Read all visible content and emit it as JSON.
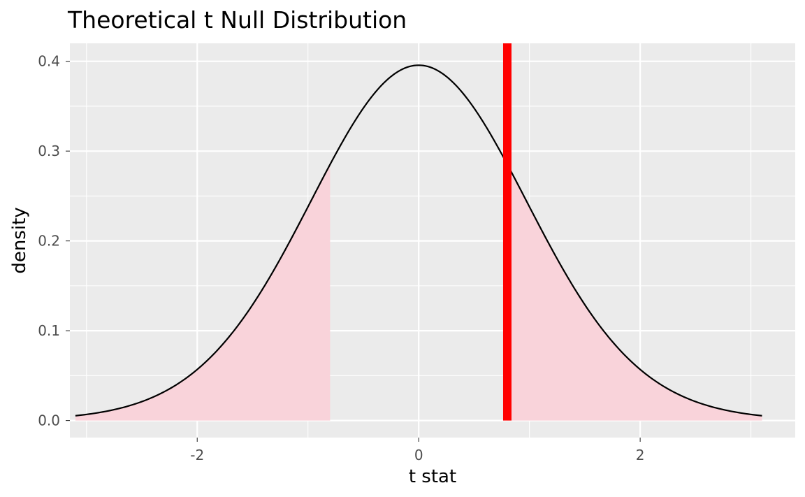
{
  "chart_data": {
    "type": "area",
    "title": "Theoretical t Null Distribution",
    "xlabel": "t stat",
    "ylabel": "density",
    "xlim": [
      -3.15,
      3.4
    ],
    "ylim": [
      -0.019,
      0.42
    ],
    "x_ticks": [
      {
        "value": -2,
        "label": "-2"
      },
      {
        "value": 0,
        "label": "0"
      },
      {
        "value": 2,
        "label": "2"
      }
    ],
    "y_ticks": [
      {
        "value": 0,
        "label": "0.0"
      },
      {
        "value": 0.1,
        "label": "0.1"
      },
      {
        "value": 0.2,
        "label": "0.2"
      },
      {
        "value": 0.3,
        "label": "0.3"
      },
      {
        "value": 0.4,
        "label": "0.4"
      }
    ],
    "x_minor_gridlines": [
      -3,
      -1,
      1,
      3
    ],
    "y_minor_gridlines": [
      0.05,
      0.15,
      0.25,
      0.35
    ],
    "grid": true,
    "density_curve": {
      "x": [
        -3.1,
        -3.0,
        -2.8,
        -2.6,
        -2.4,
        -2.2,
        -2.0,
        -1.8,
        -1.6,
        -1.4,
        -1.2,
        -1.0,
        -0.8,
        -0.6,
        -0.4,
        -0.2,
        0.0,
        0.2,
        0.4,
        0.6,
        0.8,
        1.0,
        1.2,
        1.4,
        1.6,
        1.8,
        2.0,
        2.2,
        2.4,
        2.6,
        2.8,
        3.0,
        3.1
      ],
      "y": [
        0.0033,
        0.0044,
        0.0079,
        0.0136,
        0.0224,
        0.0355,
        0.054,
        0.079,
        0.1109,
        0.1497,
        0.1942,
        0.242,
        0.2897,
        0.3332,
        0.3683,
        0.391,
        0.3989,
        0.391,
        0.3683,
        0.3332,
        0.2897,
        0.242,
        0.1942,
        0.1497,
        0.1109,
        0.079,
        0.054,
        0.0355,
        0.0224,
        0.0136,
        0.0079,
        0.0044,
        0.0033
      ],
      "color": "#000000"
    },
    "shaded_regions": [
      {
        "from": -3.1,
        "to": -0.8
      },
      {
        "from": 0.8,
        "to": 3.1
      }
    ],
    "shade_color": "#f9d3da",
    "observed_statistic": {
      "value": 0.8,
      "color": "#ff0000"
    },
    "panel_background": "#ebebeb",
    "gridline_color": "#ffffff"
  }
}
